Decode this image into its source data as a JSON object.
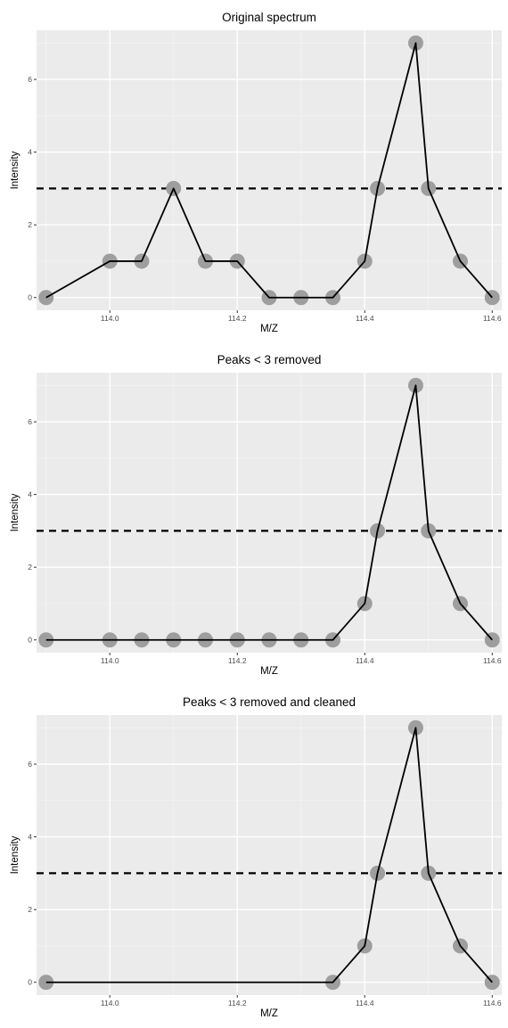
{
  "chart_data": [
    {
      "type": "line",
      "title": "Original spectrum",
      "xlabel": "M/Z",
      "ylabel": "Intensity",
      "xlim": [
        113.885,
        114.615
      ],
      "ylim": [
        -0.35,
        7.35
      ],
      "xticks": [
        114.0,
        114.2,
        114.4,
        114.6
      ],
      "xtick_labels": [
        "114.0",
        "114.2",
        "114.4",
        "114.6"
      ],
      "yticks": [
        0,
        2,
        4,
        6
      ],
      "ytick_labels": [
        "0",
        "2",
        "4",
        "6"
      ],
      "threshold": 3,
      "line": {
        "x": [
          113.9,
          114.0,
          114.05,
          114.1,
          114.15,
          114.2,
          114.25,
          114.3,
          114.35,
          114.4,
          114.42,
          114.48,
          114.5,
          114.55,
          114.6
        ],
        "y": [
          0,
          1,
          1,
          3,
          1,
          1,
          0,
          0,
          0,
          1,
          3,
          7,
          3,
          1,
          0
        ]
      },
      "points": {
        "x": [
          113.9,
          114.0,
          114.05,
          114.1,
          114.15,
          114.2,
          114.25,
          114.3,
          114.35,
          114.4,
          114.42,
          114.48,
          114.5,
          114.55,
          114.6
        ],
        "y": [
          0,
          1,
          1,
          3,
          1,
          1,
          0,
          0,
          0,
          1,
          3,
          7,
          3,
          1,
          0
        ]
      },
      "grid": true
    },
    {
      "type": "line",
      "title": "Peaks < 3 removed",
      "xlabel": "M/Z",
      "ylabel": "Intensity",
      "xlim": [
        113.885,
        114.615
      ],
      "ylim": [
        -0.35,
        7.35
      ],
      "xticks": [
        114.0,
        114.2,
        114.4,
        114.6
      ],
      "xtick_labels": [
        "114.0",
        "114.2",
        "114.4",
        "114.6"
      ],
      "yticks": [
        0,
        2,
        4,
        6
      ],
      "ytick_labels": [
        "0",
        "2",
        "4",
        "6"
      ],
      "threshold": 3,
      "line": {
        "x": [
          113.9,
          114.0,
          114.05,
          114.1,
          114.15,
          114.2,
          114.25,
          114.3,
          114.35,
          114.4,
          114.42,
          114.48,
          114.5,
          114.55,
          114.6
        ],
        "y": [
          0,
          0,
          0,
          0,
          0,
          0,
          0,
          0,
          0,
          1,
          3,
          7,
          3,
          1,
          0
        ]
      },
      "points": {
        "x": [
          113.9,
          114.0,
          114.05,
          114.1,
          114.15,
          114.2,
          114.25,
          114.3,
          114.35,
          114.4,
          114.42,
          114.48,
          114.5,
          114.55,
          114.6
        ],
        "y": [
          0,
          0,
          0,
          0,
          0,
          0,
          0,
          0,
          0,
          1,
          3,
          7,
          3,
          1,
          0
        ]
      },
      "grid": true
    },
    {
      "type": "line",
      "title": "Peaks < 3 removed and cleaned",
      "xlabel": "M/Z",
      "ylabel": "Intensity",
      "xlim": [
        113.885,
        114.615
      ],
      "ylim": [
        -0.35,
        7.35
      ],
      "xticks": [
        114.0,
        114.2,
        114.4,
        114.6
      ],
      "xtick_labels": [
        "114.0",
        "114.2",
        "114.4",
        "114.6"
      ],
      "yticks": [
        0,
        2,
        4,
        6
      ],
      "ytick_labels": [
        "0",
        "2",
        "4",
        "6"
      ],
      "threshold": 3,
      "line": {
        "x": [
          113.9,
          114.35,
          114.4,
          114.42,
          114.48,
          114.5,
          114.55,
          114.6
        ],
        "y": [
          0,
          0,
          1,
          3,
          7,
          3,
          1,
          0
        ]
      },
      "points": {
        "x": [
          113.9,
          114.35,
          114.4,
          114.42,
          114.48,
          114.5,
          114.55,
          114.6
        ],
        "y": [
          0,
          0,
          1,
          3,
          7,
          3,
          1,
          0
        ]
      },
      "grid": true
    }
  ],
  "style": {
    "panel_background": "#ebebeb",
    "grid_major": "#ffffff",
    "grid_minor": "#f5f5f5",
    "line_color": "#000000",
    "point_color": "#9e9e9e",
    "threshold_color": "#000000",
    "tick_label_color": "#4d4d4d",
    "tick_color": "#333333"
  }
}
